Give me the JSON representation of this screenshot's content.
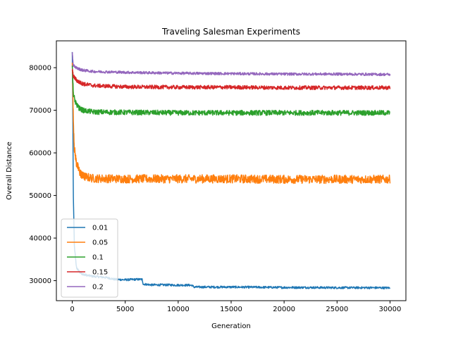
{
  "chart_data": {
    "type": "line",
    "title": "Traveling Salesman Experiments",
    "xlabel": "Generation",
    "ylabel": "Overall Distance",
    "xlim": [
      -1500,
      31500
    ],
    "ylim": [
      25300,
      86300
    ],
    "x_ticks": [
      0,
      5000,
      10000,
      15000,
      20000,
      25000,
      30000
    ],
    "x_tick_labels": [
      "0",
      "5000",
      "10000",
      "15000",
      "20000",
      "25000",
      "30000"
    ],
    "y_ticks": [
      30000,
      40000,
      50000,
      60000,
      70000,
      80000
    ],
    "y_tick_labels": [
      "30000",
      "40000",
      "50000",
      "60000",
      "70000",
      "80000"
    ],
    "grid": false,
    "legend_position": "lower-left",
    "series": [
      {
        "name": "0.01",
        "color": "#1f77b4",
        "noise": 250,
        "x": [
          0,
          50,
          100,
          200,
          400,
          700,
          1000,
          1500,
          2000,
          3000,
          3500,
          4000,
          5000,
          6000,
          6600,
          6700,
          7500,
          9000,
          10000,
          11000,
          11300,
          11500,
          13000,
          15000,
          18000,
          20000,
          22000,
          25000,
          28000,
          30000
        ],
        "y": [
          83600,
          70000,
          50000,
          38000,
          33000,
          32000,
          31500,
          31200,
          31000,
          30800,
          30600,
          30300,
          30200,
          30300,
          30300,
          29200,
          29000,
          29000,
          28950,
          28950,
          28900,
          28500,
          28500,
          28500,
          28450,
          28400,
          28400,
          28350,
          28350,
          28300
        ]
      },
      {
        "name": "0.05",
        "color": "#ff7f0e",
        "noise": 1000,
        "x": [
          0,
          100,
          200,
          400,
          700,
          1000,
          2000,
          5000,
          10000,
          15000,
          20000,
          25000,
          30000
        ],
        "y": [
          82000,
          68000,
          61000,
          57500,
          55500,
          54500,
          54000,
          53900,
          53900,
          53900,
          53800,
          53800,
          53800
        ]
      },
      {
        "name": "0.1",
        "color": "#2ca02c",
        "noise": 600,
        "x": [
          0,
          100,
          300,
          600,
          1000,
          2000,
          5000,
          10000,
          15000,
          20000,
          25000,
          30000
        ],
        "y": [
          81000,
          74000,
          71800,
          70600,
          70000,
          69600,
          69500,
          69400,
          69400,
          69400,
          69400,
          69400
        ]
      },
      {
        "name": "0.15",
        "color": "#d62728",
        "noise": 450,
        "x": [
          0,
          100,
          500,
          1000,
          2000,
          5000,
          10000,
          15000,
          20000,
          25000,
          30000
        ],
        "y": [
          79500,
          78000,
          76800,
          76200,
          75800,
          75500,
          75400,
          75400,
          75300,
          75300,
          75300
        ]
      },
      {
        "name": "0.2",
        "color": "#9467bd",
        "noise": 300,
        "x": [
          0,
          100,
          500,
          1000,
          2000,
          5000,
          10000,
          15000,
          20000,
          25000,
          30000
        ],
        "y": [
          83500,
          80500,
          79800,
          79400,
          79100,
          78900,
          78700,
          78600,
          78500,
          78500,
          78400
        ]
      }
    ]
  }
}
